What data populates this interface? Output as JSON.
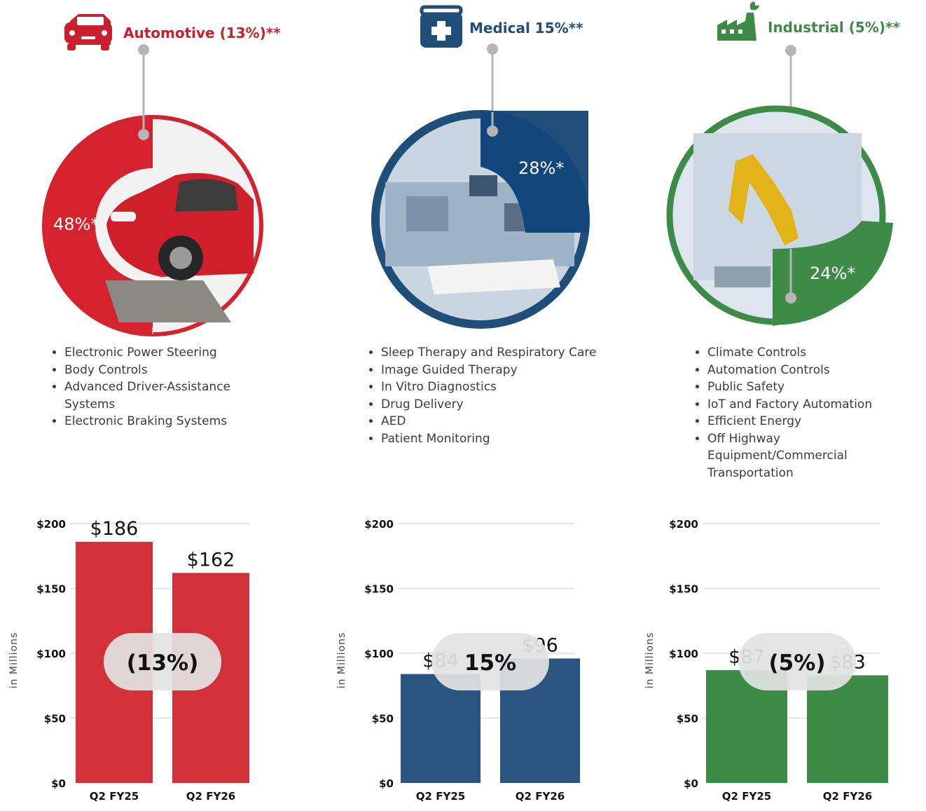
{
  "colors": {
    "automotive": "#c8202f",
    "automotive_bar": "#d23139",
    "medical": "#1f4e79",
    "medical_bar": "#2a5580",
    "industrial": "#3d8b47",
    "pill": "#e2e2e2",
    "gridline": "#e6e6e6",
    "axis_text": "#111111"
  },
  "segments": [
    {
      "id": "automotive",
      "icon": "car-icon",
      "title": "Automotive (13%)**",
      "share_label": "48%*",
      "share_value": 48,
      "bullets": [
        "Electronic Power Steering",
        "Body Controls",
        "Advanced Driver-Assistance Systems",
        "Electronic Braking Systems"
      ]
    },
    {
      "id": "medical",
      "icon": "medical-kit-icon",
      "title": "Medical 15%**",
      "share_label": "28%*",
      "share_value": 28,
      "bullets": [
        "Sleep Therapy and Respiratory Care",
        "Image Guided Therapy",
        "In Vitro Diagnostics",
        "Drug Delivery",
        "AED",
        "Patient Monitoring"
      ]
    },
    {
      "id": "industrial",
      "icon": "factory-icon",
      "title": "Industrial (5%)**",
      "share_label": "24%*",
      "share_value": 24,
      "bullets": [
        "Climate Controls",
        "Automation Controls",
        "Public Safety",
        "IoT and Factory Automation",
        "Efficient Energy",
        "Off Highway Equipment/Commercial Transportation"
      ]
    }
  ],
  "chart_data": [
    {
      "type": "bar",
      "segment": "automotive",
      "categories": [
        "Q2 FY25",
        "Q2 FY26"
      ],
      "values": [
        186,
        162
      ],
      "value_labels": [
        "$186",
        "$162"
      ],
      "ylabel": "in Millions",
      "ylim": [
        0,
        200
      ],
      "yticks": [
        0,
        50,
        100,
        150,
        200
      ],
      "ytick_labels": [
        "$0",
        "$50",
        "$100",
        "$150",
        "$200"
      ],
      "change_label": "(13%)",
      "grid": true
    },
    {
      "type": "bar",
      "segment": "medical",
      "categories": [
        "Q2 FY25",
        "Q2 FY26"
      ],
      "values": [
        84,
        96
      ],
      "value_labels": [
        "$84",
        "$96"
      ],
      "ylabel": "in Millions",
      "ylim": [
        0,
        200
      ],
      "yticks": [
        0,
        50,
        100,
        150,
        200
      ],
      "ytick_labels": [
        "$0",
        "$50",
        "$100",
        "$150",
        "$200"
      ],
      "change_label": "15%",
      "grid": true
    },
    {
      "type": "bar",
      "segment": "industrial",
      "categories": [
        "Q2 FY25",
        "Q2 FY26"
      ],
      "values": [
        87,
        83
      ],
      "value_labels": [
        "$87",
        "$83"
      ],
      "ylabel": "in Millions",
      "ylim": [
        0,
        200
      ],
      "yticks": [
        0,
        50,
        100,
        150,
        200
      ],
      "ytick_labels": [
        "$0",
        "$50",
        "$100",
        "$150",
        "$200"
      ],
      "change_label": "(5%)",
      "grid": true
    }
  ]
}
